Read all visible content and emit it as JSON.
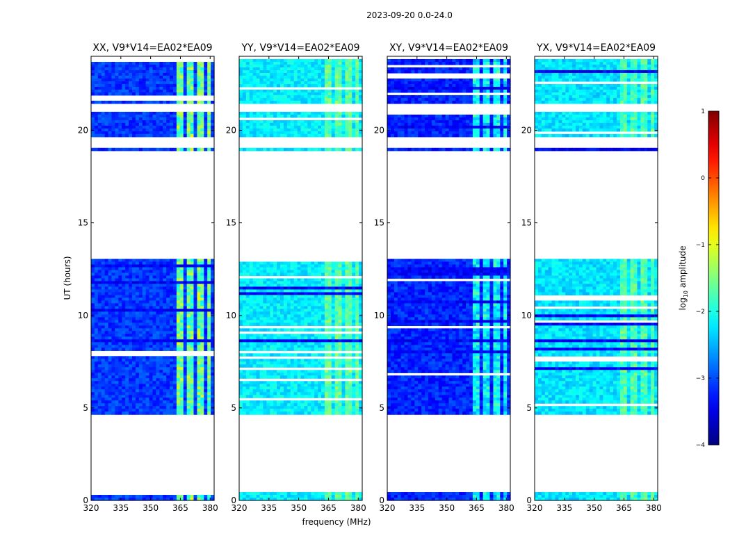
{
  "chart_data": {
    "type": "heatmap",
    "title": "2023-09-20 0.0-24.0",
    "xlabel": "frequency (MHz)",
    "ylabel": "UT (hours)",
    "xlim": [
      320,
      382
    ],
    "ylim": [
      0,
      24
    ],
    "xticks": [
      320,
      335,
      350,
      365,
      380
    ],
    "yticks": [
      0,
      5,
      10,
      15,
      20
    ],
    "panels": [
      {
        "name": "XX",
        "title": "XX, V9*V14=EA02*EA09",
        "base_level": 0.18,
        "rfi_boost": 0.35
      },
      {
        "name": "YY",
        "title": "YY, V9*V14=EA02*EA09",
        "base_level": 0.36,
        "rfi_boost": 0.12
      },
      {
        "name": "XY",
        "title": "XY, V9*V14=EA02*EA09",
        "base_level": 0.16,
        "rfi_boost": 0.25
      },
      {
        "name": "YX",
        "title": "YX, V9*V14=EA02*EA09",
        "base_level": 0.35,
        "rfi_boost": 0.12
      }
    ],
    "data_ut_ranges": [
      [
        0.0,
        0.45
      ],
      [
        4.6,
        13.1
      ],
      [
        18.9,
        24.0
      ]
    ],
    "flagged_ut_ranges": [
      [
        21.0,
        21.5
      ],
      [
        19.0,
        19.6
      ]
    ],
    "rfi_mhz_ranges": [
      [
        363.5,
        366.5
      ],
      [
        369.0,
        371.0
      ],
      [
        374.0,
        376.0
      ],
      [
        378.0,
        379.5
      ]
    ],
    "colorbar": {
      "label": "log10 amplitude",
      "label_main": "log",
      "label_sub": "10",
      "label_rest": " amplitude",
      "range": [
        -4,
        1
      ],
      "ticks": [
        "1",
        "0",
        "−1",
        "−2",
        "−3",
        "−4"
      ],
      "colormap": "jet"
    }
  }
}
